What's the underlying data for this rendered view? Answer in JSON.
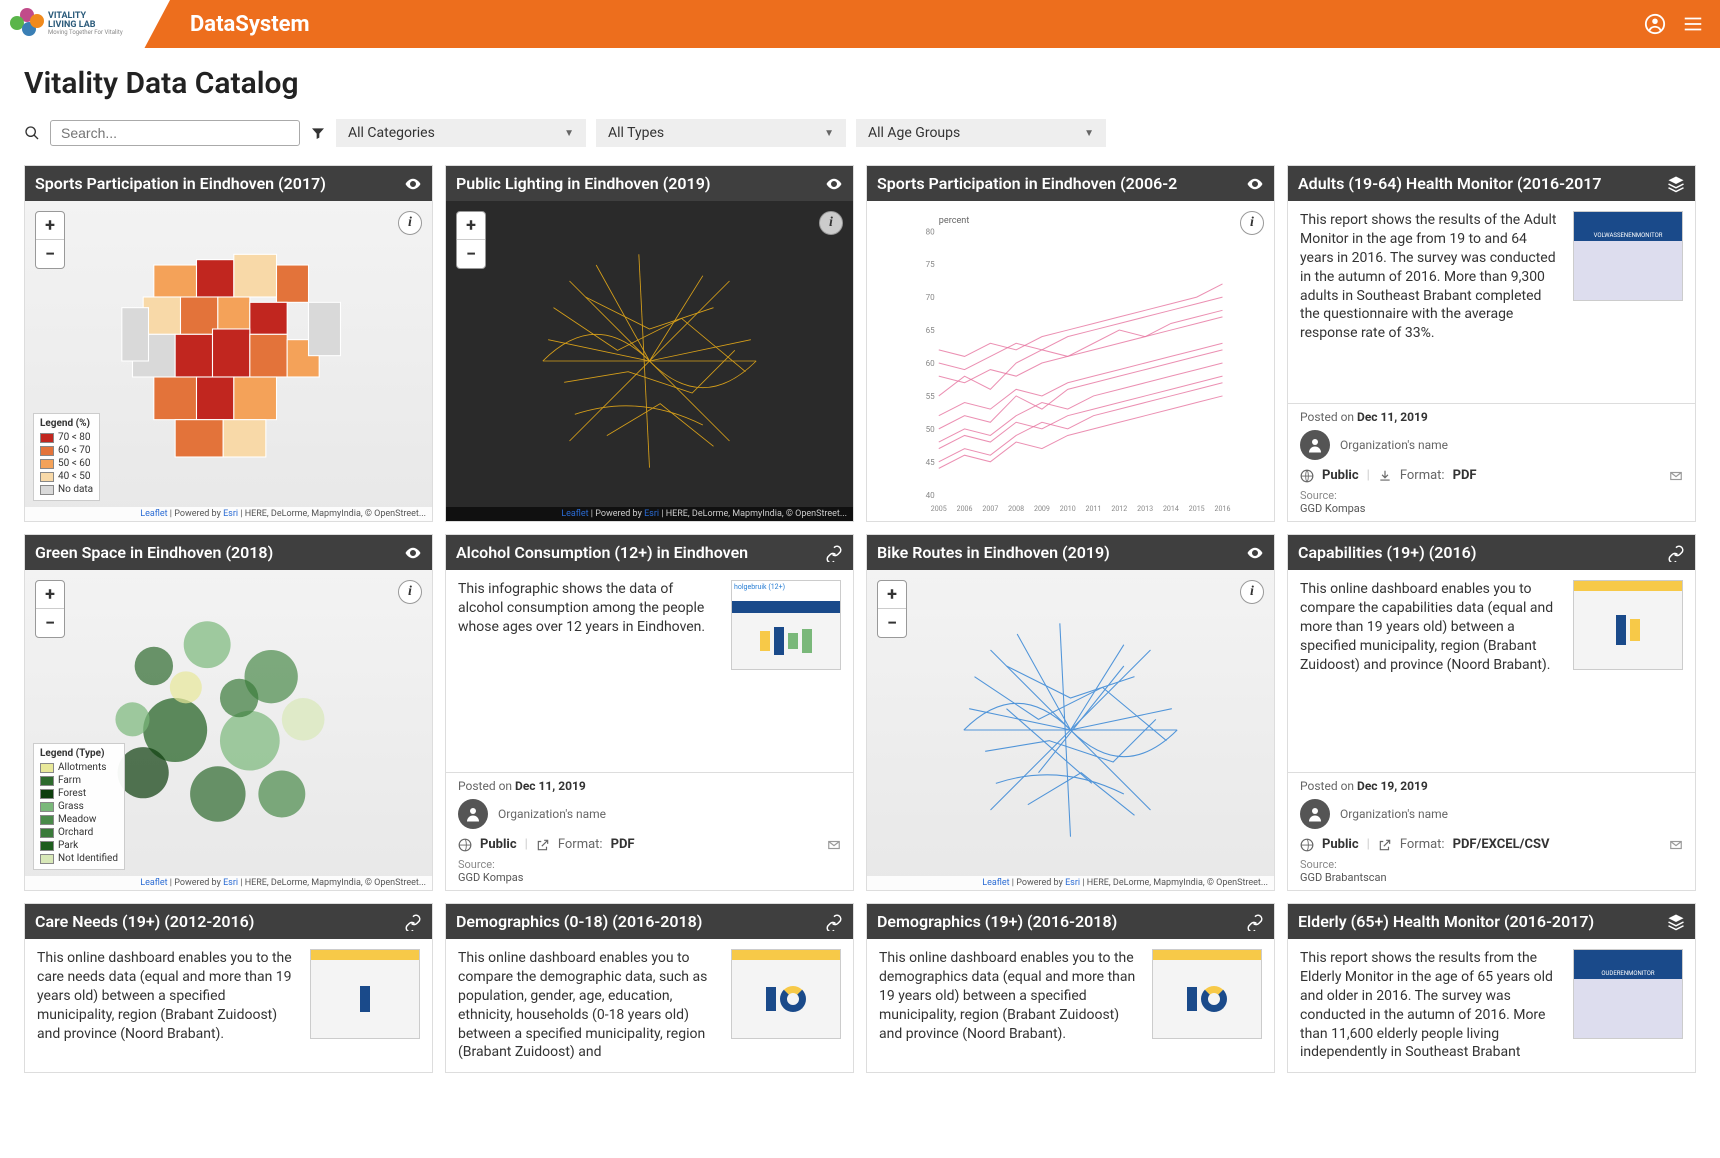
{
  "brand": "DataSystem",
  "logo": {
    "line1": "VITALITY",
    "line2": "LIVING LAB",
    "tagline": "Moving Together For Vitality",
    "dot_colors": [
      "#c14b8a",
      "#5ab54a",
      "#3a7fb5",
      "#f08a1d"
    ]
  },
  "page_title": "Vitality Data Catalog",
  "search_placeholder": "Search...",
  "filters": {
    "category": "All Categories",
    "type": "All Types",
    "age": "All Age Groups"
  },
  "attrib_html": "Leaflet | Powered by Esri | HERE, DeLorme, MapmyIndia, © OpenStreet...",
  "attrib_leaflet": "Leaflet",
  "attrib_esri": "Esri",
  "cards": {
    "c1": {
      "title": "Sports Participation in Eindhoven (2017)",
      "legend_title": "Legend (%)",
      "legend": [
        {
          "c": "#c1261f",
          "l": "70 < 80"
        },
        {
          "c": "#e3733a",
          "l": "60 < 70"
        },
        {
          "c": "#f4a259",
          "l": "50 < 60"
        },
        {
          "c": "#f8d9a8",
          "l": "40 < 50"
        },
        {
          "c": "#d9d9d9",
          "l": "No data"
        }
      ]
    },
    "c2": {
      "title": "Public Lighting in Eindhoven (2019)",
      "line_color": "#f5b417"
    },
    "c3": {
      "title": "Sports Participation in Eindhoven (2006-2",
      "y_label": "percent",
      "ylim": [
        40,
        80
      ],
      "yticks": [
        40,
        45,
        50,
        55,
        60,
        65,
        70,
        75,
        80
      ],
      "xticks": [
        "2005",
        "2006",
        "2007",
        "2008",
        "2009",
        "2010",
        "2011",
        "2012",
        "2013",
        "2014",
        "2015",
        "2016"
      ],
      "line_color": "#e6739f",
      "series": [
        [
          55,
          58,
          56,
          60,
          62,
          61,
          63,
          65,
          64,
          66,
          67,
          68
        ],
        [
          50,
          52,
          51,
          55,
          53,
          56,
          57,
          58,
          59,
          60,
          61,
          62
        ],
        [
          48,
          50,
          49,
          52,
          54,
          53,
          55,
          56,
          57,
          58,
          59,
          60
        ],
        [
          60,
          59,
          61,
          63,
          62,
          64,
          65,
          66,
          67,
          68,
          69,
          70
        ],
        [
          45,
          47,
          46,
          49,
          51,
          50,
          52,
          53,
          54,
          55,
          56,
          57
        ],
        [
          58,
          57,
          59,
          58,
          60,
          61,
          62,
          63,
          64,
          65,
          66,
          67
        ],
        [
          52,
          54,
          53,
          56,
          55,
          57,
          58,
          59,
          60,
          61,
          62,
          63
        ],
        [
          47,
          49,
          48,
          51,
          50,
          52,
          53,
          54,
          55,
          56,
          57,
          58
        ],
        [
          62,
          61,
          63,
          62,
          64,
          65,
          66,
          67,
          68,
          69,
          70,
          72
        ],
        [
          44,
          46,
          45,
          48,
          47,
          49,
          50,
          51,
          52,
          53,
          54,
          55
        ]
      ]
    },
    "c4": {
      "title": "Adults (19-64) Health Monitor (2016-2017",
      "desc": "This report shows the results of the Adult Monitor in the age from 19 to and 64 years in 2016. The survey was conducted in the autumn of 2016. More than 9,300 adults in Southeast Brabant completed the questionnaire with the average response rate of 33%.",
      "thumb_title": "VOLWASSENENMONITOR",
      "posted": "Dec 11, 2019",
      "org": "Organization's name",
      "visibility": "Public",
      "format": "PDF",
      "source": "GGD Kompas"
    },
    "c5": {
      "title": "Green Space in Eindhoven (2018)",
      "legend_title": "Legend (Type)",
      "legend": [
        {
          "c": "#e8e89a",
          "l": "Allotments"
        },
        {
          "c": "#2d6a2d",
          "l": "Farm"
        },
        {
          "c": "#0d3d0d",
          "l": "Forest"
        },
        {
          "c": "#7ab87a",
          "l": "Grass"
        },
        {
          "c": "#4a8a4a",
          "l": "Meadow"
        },
        {
          "c": "#3a7a3a",
          "l": "Orchard"
        },
        {
          "c": "#1d5d1d",
          "l": "Park"
        },
        {
          "c": "#d8e8b8",
          "l": "Not Identified"
        }
      ]
    },
    "c6": {
      "title": "Alcohol Consumption (12+) in Eindhoven",
      "desc": "This infographic shows the data of alcohol consumption among the people whose ages over 12 years in Eindhoven.",
      "thumb_title": "holgebruik (12+)",
      "posted": "Dec 11, 2019",
      "org": "Organization's name",
      "visibility": "Public",
      "format": "PDF",
      "source": "GGD Kompas"
    },
    "c7": {
      "title": "Bike Routes in Eindhoven (2019)",
      "line_color": "#2a7fd4"
    },
    "c8": {
      "title": "Capabilities (19+) (2016)",
      "desc": "This online dashboard enables you to compare the capabilities data (equal and more than 19 years old) between a specified municipality, region (Brabant Zuidoost) and province (Noord Brabant).",
      "posted": "Dec 19, 2019",
      "org": "Organization's name",
      "visibility": "Public",
      "format": "PDF/EXCEL/CSV",
      "source": "GGD Brabantscan"
    },
    "c9": {
      "title": "Care Needs (19+) (2012-2016)",
      "desc": "This online dashboard enables you to the care needs data (equal and more than 19 years old) between a specified municipality, region (Brabant Zuidoost) and province (Noord Brabant)."
    },
    "c10": {
      "title": "Demographics (0-18) (2016-2018)",
      "desc": "This online dashboard enables you to compare the demographic data, such as population, gender, age, education, ethnicity, households (0-18 years old) between a specified municipality, region (Brabant Zuidoost) and"
    },
    "c11": {
      "title": "Demographics (19+) (2016-2018)",
      "desc": "This online dashboard enables you to the demographics data (equal and more than 19 years old) between a specified municipality, region (Brabant Zuidoost) and province (Noord Brabant)."
    },
    "c12": {
      "title": "Elderly (65+) Health Monitor (2016-2017)",
      "desc": "This report shows the results from the Elderly Monitor in the age of 65 years old and older in 2016. The survey was conducted in the autumn of 2016. More than 11,600 elderly people living independently in Southeast Brabant",
      "thumb_title": "OUDERENMONITOR"
    }
  },
  "labels": {
    "posted_on": "Posted on ",
    "format": "Format: ",
    "source": "Source:"
  }
}
